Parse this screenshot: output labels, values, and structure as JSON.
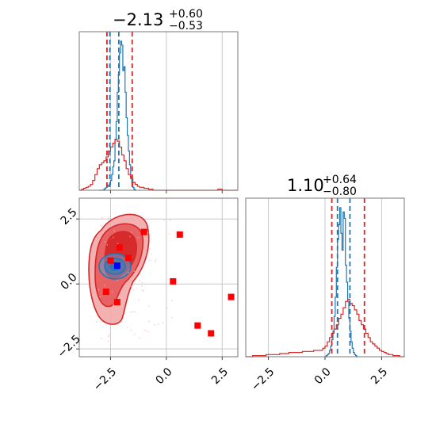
{
  "chart_data": [
    {
      "type": "histogram",
      "panel": "top-left",
      "title": {
        "median": "−2.13",
        "plus": "+0.60",
        "minus": "−0.53"
      },
      "xlim": [
        -3.9,
        3.2
      ],
      "grid": true,
      "show_xticklabels": false,
      "xticks": [
        -2.5,
        0.0,
        2.5
      ],
      "series": [
        {
          "color": "#1f77b4",
          "style": "step",
          "x_start": -3.0,
          "bin_width": 0.05,
          "values": [
            0,
            0,
            0,
            0,
            1,
            2,
            3,
            5,
            4,
            6,
            10,
            16,
            24,
            30,
            52,
            70,
            100,
            118,
            140,
            152,
            148,
            122,
            126,
            100,
            74,
            56,
            40,
            26,
            14,
            8,
            3,
            1,
            0
          ]
        },
        {
          "color": "#d62728",
          "style": "step",
          "x_start": -3.9,
          "bin_width": 0.1,
          "values": [
            0,
            1,
            2,
            3,
            4,
            6,
            10,
            16,
            22,
            26,
            28,
            30,
            34,
            40,
            44,
            48,
            52,
            50,
            44,
            36,
            30,
            22,
            16,
            12,
            8,
            6,
            4,
            3,
            3,
            2,
            2,
            1,
            1,
            0,
            0,
            0,
            0,
            0,
            0,
            0,
            0,
            0,
            0,
            0,
            0,
            0,
            0,
            0,
            0,
            0,
            0,
            0,
            0,
            0,
            0,
            0,
            0,
            0,
            0,
            0,
            0,
            0,
            1,
            1,
            0,
            0,
            0,
            0,
            0,
            0,
            0
          ]
        }
      ],
      "vlines": [
        {
          "x": -2.66,
          "color": "#d62728",
          "style": "dashed"
        },
        {
          "x": -2.53,
          "color": "#1f77b4",
          "style": "dashed"
        },
        {
          "x": -2.13,
          "color": "#1f77b4",
          "style": "dashed"
        },
        {
          "x": -1.53,
          "color": "#d62728",
          "style": "dashed"
        }
      ]
    },
    {
      "type": "scatter-contour",
      "panel": "bottom-left",
      "xlim": [
        -3.9,
        3.2
      ],
      "ylim": [
        -2.8,
        3.3
      ],
      "grid": true,
      "xticks": [
        -2.5,
        0.0,
        2.5
      ],
      "yticks": [
        -2.5,
        0.0,
        2.5
      ],
      "xtick_labels": [
        "−2.5",
        "0.0",
        "2.5"
      ],
      "ytick_labels": [
        "−2.5",
        "0.0",
        "2.5"
      ],
      "red_points": [
        [
          -2.1,
          1.4
        ],
        [
          -1.0,
          2.0
        ],
        [
          0.6,
          1.9
        ],
        [
          -1.7,
          1.0
        ],
        [
          -2.5,
          0.9
        ],
        [
          0.3,
          0.1
        ],
        [
          -2.7,
          -0.3
        ],
        [
          -2.2,
          -0.7
        ],
        [
          2.9,
          -0.5
        ],
        [
          1.4,
          -1.6
        ],
        [
          2.0,
          -1.9
        ]
      ],
      "blue_point": [
        -2.2,
        0.7
      ],
      "colors": {
        "outer": "#d62728",
        "inner_blue": "#1f77b4",
        "point_red": "#ff0000",
        "point_blue": "#0000ff"
      }
    },
    {
      "type": "histogram",
      "panel": "bottom-right",
      "title": {
        "median": "1.10",
        "plus": "+0.64",
        "minus": "−0.80"
      },
      "xlim": [
        -3.5,
        3.5
      ],
      "grid": true,
      "xticks": [
        -2.5,
        0.0,
        2.5
      ],
      "xtick_labels": [
        "−2.5",
        "0.0",
        "2.5"
      ],
      "series": [
        {
          "color": "#1f77b4",
          "style": "step",
          "x_start": 0.0,
          "bin_width": 0.05,
          "values": [
            0,
            1,
            2,
            3,
            6,
            10,
            16,
            24,
            38,
            56,
            84,
            110,
            124,
            140,
            116,
            100,
            136,
            130,
            86,
            70,
            52,
            36,
            24,
            14,
            8,
            4,
            2,
            1,
            0
          ]
        },
        {
          "color": "#d62728",
          "style": "step",
          "x_start": -3.5,
          "bin_width": 0.1,
          "values": [
            0,
            0,
            0,
            1,
            1,
            1,
            1,
            1,
            1,
            2,
            2,
            2,
            2,
            2,
            2,
            3,
            3,
            3,
            3,
            4,
            4,
            4,
            4,
            4,
            4,
            5,
            5,
            5,
            5,
            5,
            6,
            6,
            6,
            6,
            8,
            10,
            14,
            18,
            22,
            26,
            30,
            36,
            40,
            46,
            52,
            54,
            50,
            48,
            44,
            40,
            34,
            30,
            26,
            22,
            18,
            14,
            12,
            10,
            8,
            6,
            5,
            4,
            3,
            2,
            2,
            1,
            1,
            1,
            0,
            0
          ]
        }
      ],
      "vlines": [
        {
          "x": 0.3,
          "color": "#d62728",
          "style": "dashed"
        },
        {
          "x": 0.55,
          "color": "#1f77b4",
          "style": "dashed"
        },
        {
          "x": 1.1,
          "color": "#1f77b4",
          "style": "dashed"
        },
        {
          "x": 1.74,
          "color": "#d62728",
          "style": "dashed"
        }
      ]
    }
  ]
}
